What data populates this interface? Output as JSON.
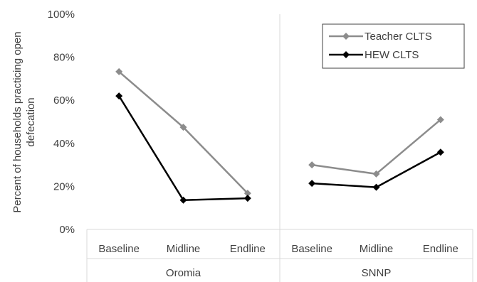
{
  "chart_data": {
    "type": "line",
    "ylabel": "Percent of households practicing open defecation",
    "ylabel_lines": [
      "Percent of households practicing open",
      "defecation"
    ],
    "ylim": [
      0,
      100
    ],
    "yticks": [
      "0%",
      "20%",
      "40%",
      "60%",
      "80%",
      "100%"
    ],
    "ytick_values": [
      0,
      20,
      40,
      60,
      80,
      100
    ],
    "groups": [
      {
        "name": "Oromia",
        "categories": [
          "Baseline",
          "Midline",
          "Endline"
        ]
      },
      {
        "name": "SNNP",
        "categories": [
          "Baseline",
          "Midline",
          "Endline"
        ]
      }
    ],
    "legend_position": "top-right",
    "series": [
      {
        "name": "Teacher CLTS",
        "color": "#8c8c8c",
        "values": [
          [
            73.3,
            47.5,
            16.8
          ],
          [
            30.0,
            25.8,
            51.0
          ]
        ]
      },
      {
        "name": "HEW CLTS",
        "color": "#000000",
        "values": [
          [
            62.0,
            13.6,
            14.5
          ],
          [
            21.4,
            19.6,
            35.9
          ]
        ]
      }
    ],
    "grid": false
  }
}
